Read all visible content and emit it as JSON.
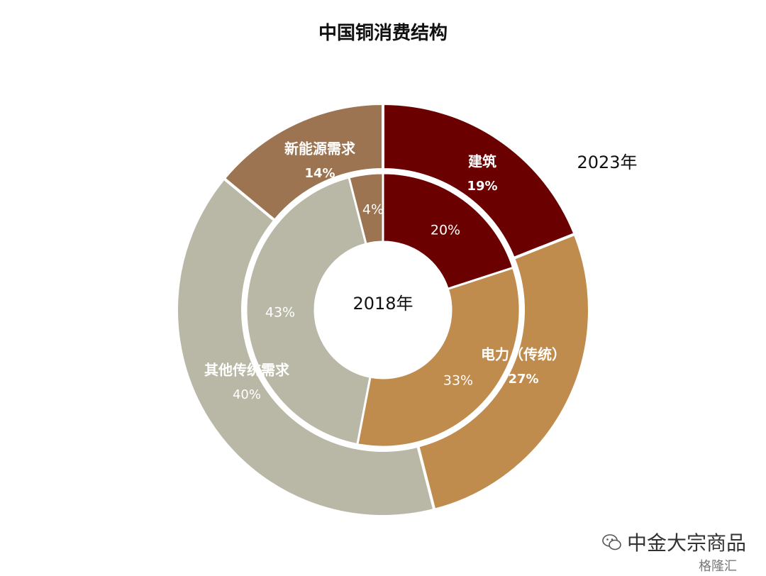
{
  "chart_data": {
    "type": "pie",
    "title": "中国铜消费结构",
    "rings": [
      {
        "name": "2018年",
        "ring": "inner",
        "slices": [
          {
            "label": "建筑",
            "value": 20,
            "value_label": "20%",
            "color": "#6B0000"
          },
          {
            "label": "电力（传统）",
            "value": 33,
            "value_label": "33%",
            "color": "#BF8C4E"
          },
          {
            "label": "其他传统需求",
            "value": 43,
            "value_label": "43%",
            "color": "#B9B8A6"
          },
          {
            "label": "新能源需求",
            "value": 4,
            "value_label": "4%",
            "color": "#9C7452"
          }
        ]
      },
      {
        "name": "2023年",
        "ring": "outer",
        "slices": [
          {
            "label": "建筑",
            "value": 19,
            "value_label": "19%",
            "color": "#6B0000"
          },
          {
            "label": "电力（传统）",
            "value": 27,
            "value_label": "27%",
            "color": "#BF8C4E"
          },
          {
            "label": "其他传统需求",
            "value": 40,
            "value_label": "40%",
            "color": "#B9B8A6"
          },
          {
            "label": "新能源需求",
            "value": 14,
            "value_label": "14%",
            "color": "#9C7452"
          }
        ]
      }
    ],
    "start": "12 o'clock, clockwise"
  },
  "watermark": {
    "brand": "中金大宗商品",
    "sub": "格隆汇",
    "icon": "wechat-icon"
  }
}
